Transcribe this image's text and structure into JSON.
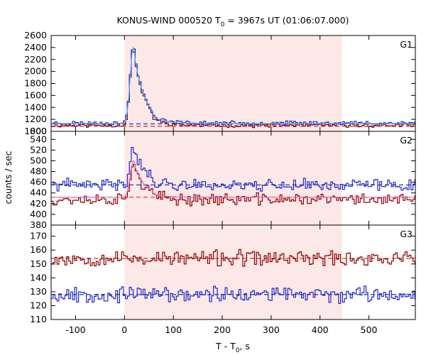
{
  "chart_data": {
    "type": "line",
    "title": "KONUS-WIND 000520 T",
    "title_sub": "0",
    "title_rest": " = 3967s UT (01:06:07.000)",
    "xlabel": "T - T",
    "xlabel_sub": "0",
    "xlabel_rest": ", s",
    "ylabel": "counts / sec",
    "xlim": [
      -150,
      595
    ],
    "xticks": [
      -100,
      0,
      100,
      200,
      300,
      400,
      500
    ],
    "shaded_interval": [
      0,
      445
    ],
    "colors": {
      "shade": "#fde8e8",
      "series_red": "#8b0000",
      "series_blue": "#1f28c8",
      "fit_red": "#e04040",
      "fit_blue": "#1f48c8",
      "model_cyan": "#5ab4e0",
      "model_pink": "#e070d0"
    },
    "panels": [
      {
        "label": "G1",
        "ylim": [
          1000,
          2600
        ],
        "yticks": [
          1000,
          1200,
          1400,
          1600,
          1800,
          2000,
          2200,
          2400,
          2600
        ],
        "extra_ytick_labels": [
          800
        ],
        "background_red": 1085,
        "background_blue": 1125,
        "series": [
          {
            "color_key": "series_red",
            "baseline": 1100,
            "amp": 1280,
            "noise": 25,
            "seed": 11
          },
          {
            "color_key": "series_blue",
            "baseline": 1140,
            "amp": 1280,
            "noise": 25,
            "seed": 23
          }
        ],
        "model": {
          "color_key": "model_cyan",
          "baseline": 1130,
          "amp": 1270
        }
      },
      {
        "label": "G2",
        "ylim": [
          380,
          555
        ],
        "yticks": [
          380,
          400,
          420,
          440,
          460,
          480,
          500,
          520,
          540
        ],
        "background_red": 432,
        "background_blue": 455,
        "series": [
          {
            "color_key": "series_red",
            "baseline": 428,
            "amp": 70,
            "noise": 9,
            "seed": 37
          },
          {
            "color_key": "series_blue",
            "baseline": 455,
            "amp": 75,
            "noise": 9,
            "seed": 41
          }
        ],
        "model": {
          "color_key": "model_pink",
          "baseline": 432,
          "amp": 68
        }
      },
      {
        "label": "G3",
        "ylim": [
          110,
          178
        ],
        "yticks": [
          110,
          120,
          130,
          140,
          150,
          160,
          170
        ],
        "background_red": 154,
        "background_blue": 128,
        "series": [
          {
            "color_key": "series_red",
            "baseline": 154,
            "amp": 0,
            "noise": 4.5,
            "seed": 53
          },
          {
            "color_key": "series_blue",
            "baseline": 128,
            "amp": 0,
            "noise": 4.5,
            "seed": 67
          }
        ],
        "model": null
      }
    ]
  }
}
